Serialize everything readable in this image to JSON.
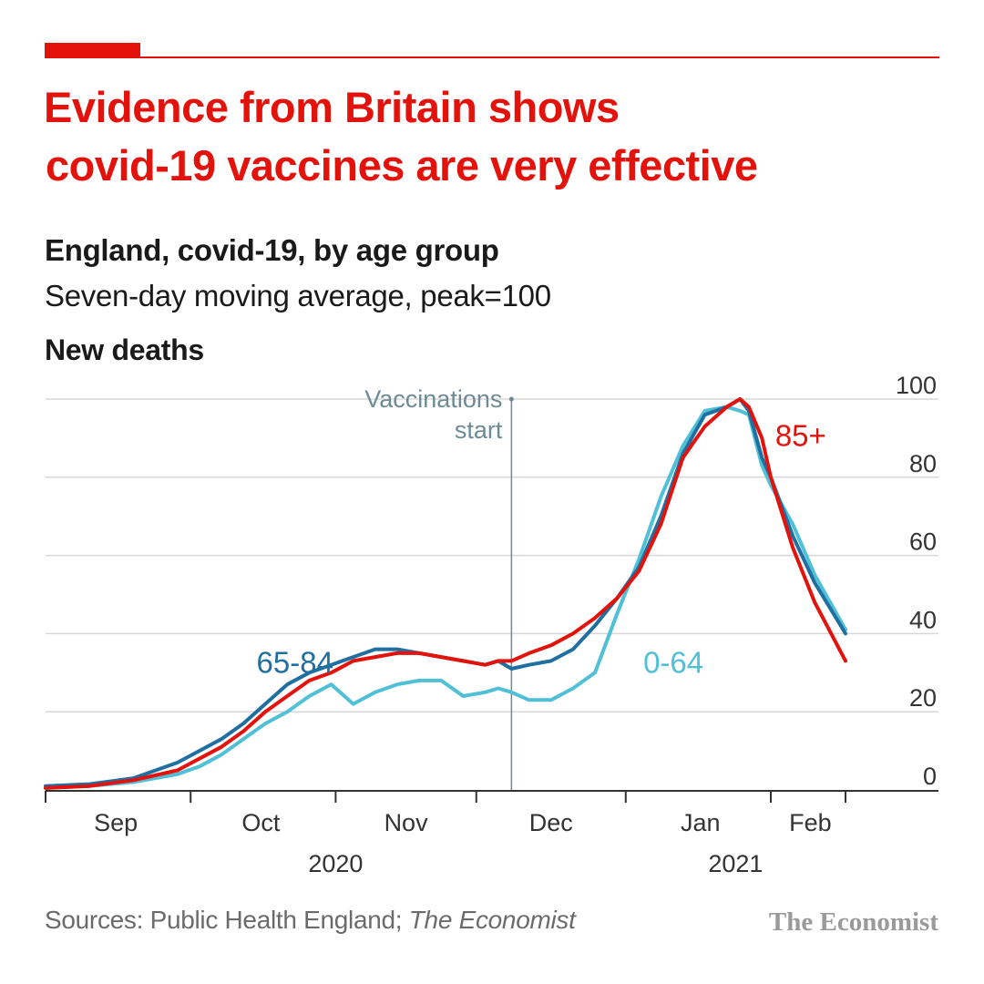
{
  "header": {
    "title_line1": "Evidence from Britain shows",
    "title_line2": "covid-19 vaccines are very effective",
    "subtitle": "England, covid-19, by age group",
    "description": "Seven-day moving average, peak=100",
    "panel_title": "New deaths"
  },
  "footer": {
    "sources_prefix": "Sources: Public Health England; ",
    "sources_italic": "The Economist",
    "brand": "The Economist"
  },
  "colors": {
    "accent": "#e3120b",
    "series_65_84": "#1f6fa0",
    "series_0_64": "#4fc0d6",
    "series_85_plus": "#e3120b",
    "annotation": "#6d8a96",
    "grid": "#d7d7d7",
    "axis": "#333333"
  },
  "chart_data": {
    "type": "line",
    "title": "New deaths",
    "xlabel": "",
    "ylabel": "",
    "ylim": [
      0,
      100
    ],
    "yticks": [
      "0",
      "20",
      "40",
      "60",
      "80",
      "100"
    ],
    "y_axis_side": "right",
    "x_range_days": [
      0,
      182
    ],
    "x_tick_days": [
      0,
      33,
      66,
      98,
      132,
      165,
      182
    ],
    "months": [
      {
        "label": "Sep",
        "day": 16
      },
      {
        "label": "Oct",
        "day": 49
      },
      {
        "label": "Nov",
        "day": 82
      },
      {
        "label": "Dec",
        "day": 115
      },
      {
        "label": "Jan",
        "day": 149
      },
      {
        "label": "Feb",
        "day": 174
      }
    ],
    "years": [
      {
        "label": "2020",
        "day": 66
      },
      {
        "label": "2021",
        "day": 157
      }
    ],
    "annotation": {
      "line1": "Vaccinations",
      "line2": "start",
      "day": 106
    },
    "series": [
      {
        "name": "65-84",
        "label": "65-84",
        "color": "#1f6fa0",
        "x": [
          0,
          10,
          20,
          30,
          35,
          40,
          45,
          50,
          55,
          60,
          65,
          70,
          75,
          80,
          85,
          90,
          95,
          100,
          103,
          106,
          110,
          115,
          120,
          125,
          130,
          135,
          140,
          145,
          150,
          155,
          158,
          160,
          163,
          165,
          170,
          175,
          182
        ],
        "values": [
          1,
          1.5,
          3,
          7,
          10,
          13,
          17,
          22,
          27,
          30,
          32,
          34,
          36,
          36,
          35,
          34,
          33,
          32,
          33,
          31,
          32,
          33,
          36,
          42,
          49,
          57,
          70,
          86,
          96,
          98,
          100,
          97,
          85,
          80,
          65,
          53,
          40
        ]
      },
      {
        "name": "0-64",
        "label": "0-64",
        "color": "#4fc0d6",
        "x": [
          0,
          10,
          20,
          30,
          35,
          40,
          45,
          50,
          55,
          60,
          65,
          70,
          75,
          80,
          85,
          90,
          95,
          100,
          103,
          106,
          110,
          115,
          120,
          125,
          130,
          135,
          140,
          145,
          150,
          155,
          158,
          160,
          163,
          165,
          170,
          175,
          182
        ],
        "values": [
          0.5,
          1,
          2,
          4,
          6,
          9,
          13,
          17,
          20,
          24,
          27,
          22,
          25,
          27,
          28,
          28,
          24,
          25,
          26,
          25,
          23,
          23,
          26,
          30,
          45,
          59,
          75,
          88,
          97,
          98,
          97,
          96,
          83,
          78,
          68,
          55,
          41
        ]
      },
      {
        "name": "85+",
        "label": "85+",
        "color": "#e3120b",
        "x": [
          0,
          10,
          20,
          30,
          35,
          40,
          45,
          50,
          55,
          60,
          65,
          70,
          75,
          80,
          85,
          90,
          95,
          100,
          103,
          106,
          110,
          115,
          120,
          125,
          130,
          135,
          140,
          145,
          150,
          155,
          158,
          160,
          163,
          165,
          170,
          175,
          182
        ],
        "values": [
          0.5,
          1,
          2.5,
          5,
          8,
          11,
          15,
          20,
          24,
          28,
          30,
          33,
          34,
          35,
          35,
          34,
          33,
          32,
          33,
          33,
          35,
          37,
          40,
          44,
          49,
          56,
          68,
          85,
          93,
          98,
          100,
          98,
          90,
          80,
          62,
          48,
          33
        ]
      }
    ],
    "series_labels": [
      {
        "series": "65-84",
        "day": 48,
        "value": 30
      },
      {
        "series": "0-64",
        "day": 136,
        "value": 30
      },
      {
        "series": "85+",
        "day": 166,
        "value": 88
      }
    ]
  }
}
